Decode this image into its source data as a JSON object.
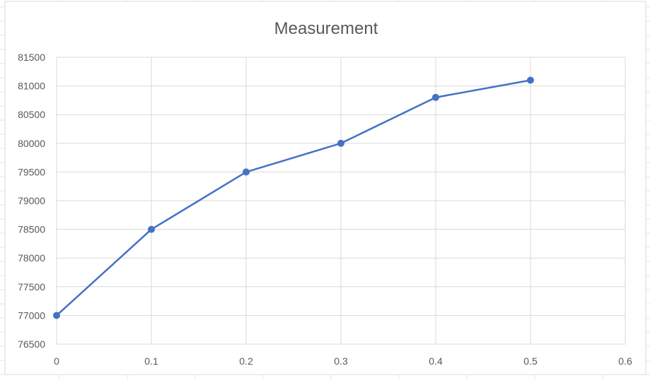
{
  "chart_data": {
    "type": "scatter",
    "title": "Measurement",
    "xlabel": "",
    "ylabel": "",
    "x": [
      0,
      0.1,
      0.2,
      0.3,
      0.4,
      0.5
    ],
    "series": [
      {
        "values": [
          77000,
          78500,
          79500,
          80000,
          80800,
          81100
        ]
      }
    ],
    "xlim": [
      0,
      0.6
    ],
    "ylim": [
      76500,
      81500
    ],
    "xticks": [
      "0",
      "0.1",
      "0.2",
      "0.3",
      "0.4",
      "0.5",
      "0.6"
    ],
    "yticks": [
      "76500",
      "77000",
      "77500",
      "78000",
      "78500",
      "79000",
      "79500",
      "80000",
      "80500",
      "81000",
      "81500"
    ],
    "lines_connected": true,
    "markers": "circle",
    "grid": true,
    "legend": "none",
    "colors": {
      "series": "#4472c4",
      "grid": "#d9d9d9",
      "text": "#595959"
    }
  }
}
